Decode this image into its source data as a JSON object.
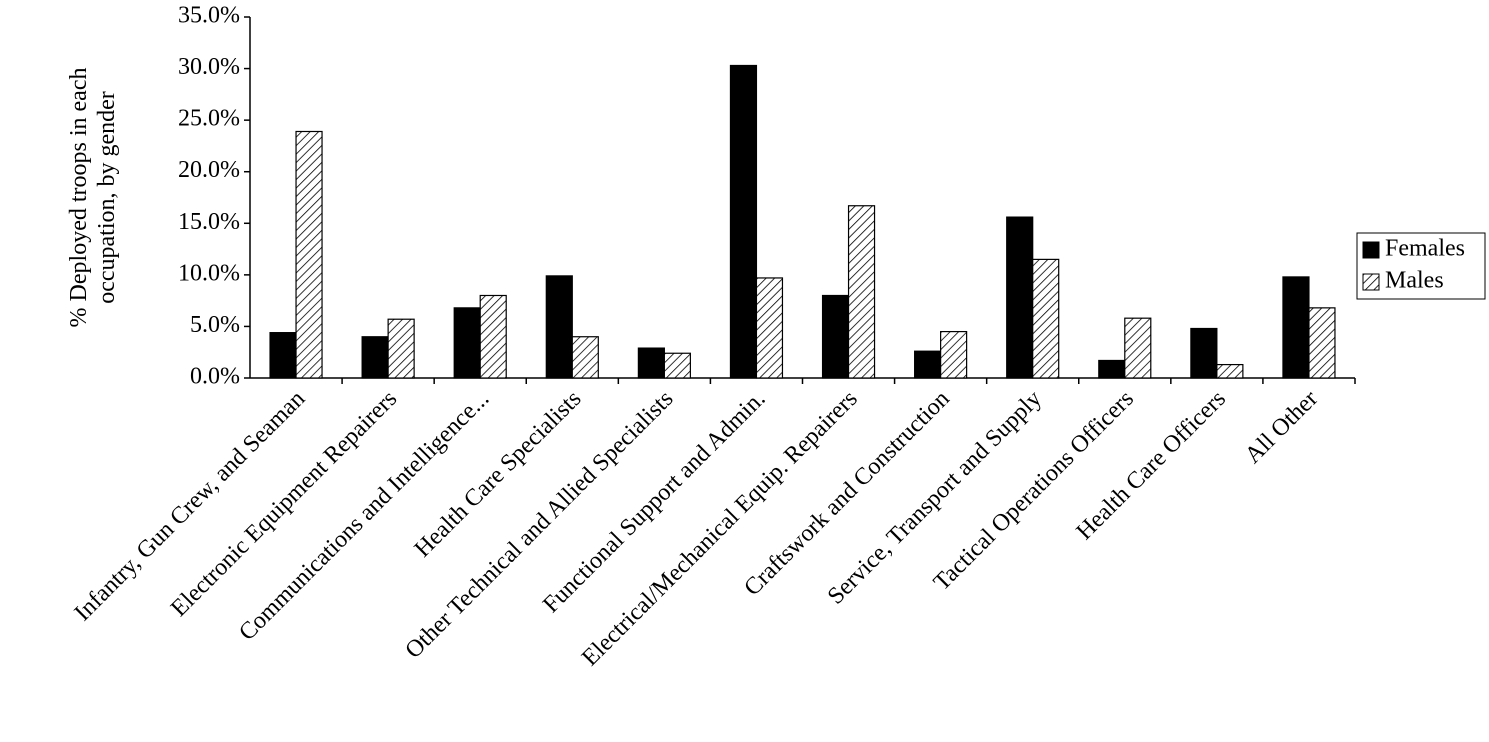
{
  "chart_data": {
    "type": "bar",
    "ylabel": "% Deployed troops in each occupation, by gender",
    "categories": [
      "Infantry, Gun Crew, and Seaman",
      "Electronic Equipment Repairers",
      "Communications and Intelligence...",
      "Health Care Specialists",
      "Other Technical and Allied Specialists",
      "Functional Support and Admin.",
      "Electrical/Mechanical Equip. Repairers",
      "Craftswork and Construction",
      "Service, Transport and Supply",
      "Tactical Operations Officers",
      "Health Care Officers",
      "All Other"
    ],
    "series": [
      {
        "name": "Females",
        "color": "#000000",
        "values": [
          4.4,
          4.0,
          6.8,
          9.9,
          2.9,
          30.3,
          8.0,
          2.6,
          15.6,
          1.7,
          4.8,
          9.8
        ]
      },
      {
        "name": "Males",
        "color": "hatch",
        "values": [
          23.9,
          5.7,
          8.0,
          4.0,
          2.4,
          9.7,
          16.7,
          4.5,
          11.5,
          5.8,
          1.3,
          6.8
        ]
      }
    ],
    "ylim": [
      0,
      35
    ],
    "yticks": [
      {
        "value": 0,
        "label": "0.0%"
      },
      {
        "value": 5,
        "label": "5.0%"
      },
      {
        "value": 10,
        "label": "10.0%"
      },
      {
        "value": 15,
        "label": "15.0%"
      },
      {
        "value": 20,
        "label": "20.0%"
      },
      {
        "value": 25,
        "label": "25.0%"
      },
      {
        "value": 30,
        "label": "30.0%"
      },
      {
        "value": 35,
        "label": "35.0%"
      }
    ],
    "grid": false,
    "legend": "right"
  }
}
